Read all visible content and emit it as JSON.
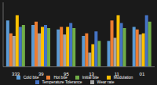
{
  "chart_data": {
    "type": "bar",
    "categories": [
      "333",
      "39",
      "95",
      "13",
      "11",
      "01"
    ],
    "series": [
      {
        "name": "Cold bite",
        "color": "#5b9bd5",
        "values": [
          72,
          65,
          58,
          48,
          40,
          62
        ]
      },
      {
        "name": "Hot bite",
        "color": "#ed7d31",
        "values": [
          52,
          70,
          62,
          52,
          72,
          58
        ]
      },
      {
        "name": "Wear rate",
        "color": "#a5a5a5",
        "values": [
          48,
          52,
          50,
          22,
          45,
          50
        ]
      },
      {
        "name": "Modulation",
        "color": "#ffc000",
        "values": [
          80,
          62,
          62,
          35,
          80,
          52
        ]
      },
      {
        "name": "Temperature Tolerance",
        "color": "#4472c4",
        "values": [
          62,
          65,
          68,
          55,
          68,
          80
        ]
      },
      {
        "name": "Initial bite",
        "color": "#70ad47",
        "values": [
          65,
          60,
          60,
          40,
          60,
          70
        ]
      }
    ],
    "ylim": [
      0,
      100
    ],
    "grid": false,
    "legend": "bottom",
    "tick_labels": "x"
  }
}
